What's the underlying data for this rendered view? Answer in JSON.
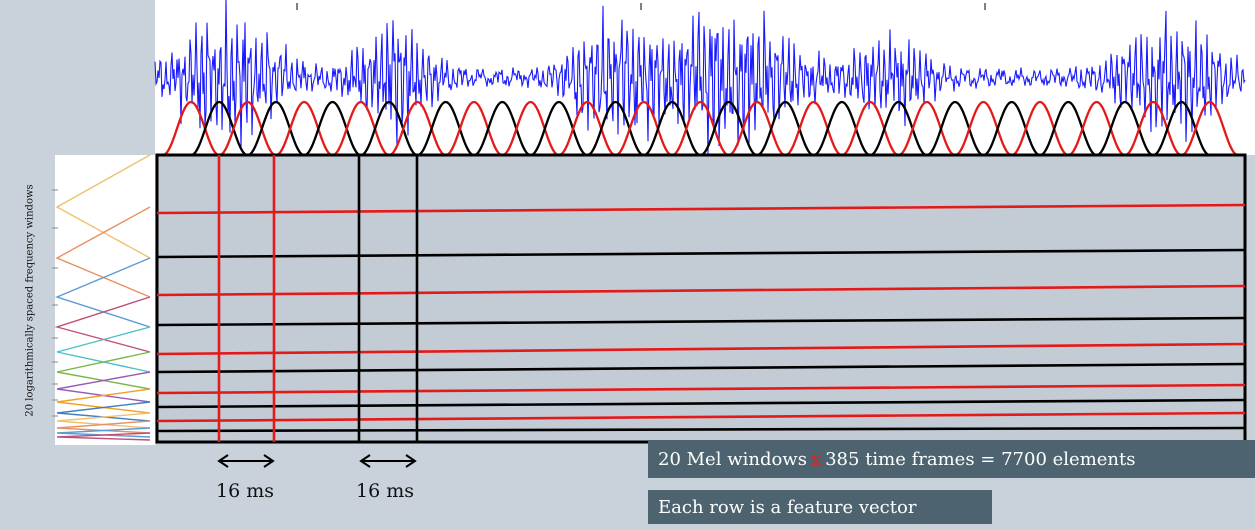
{
  "y_axis_label": "20 logarithmically spaced frequency  windows",
  "durations": [
    "16 ms",
    "16 ms"
  ],
  "summary": {
    "lhs": "20 Mel windows",
    "operator": "x",
    "rhs": "385 time frames = 7700 elements"
  },
  "note": "Each row is a feature vector",
  "colors": {
    "waveform": "#1a1aff",
    "window_red": "#e41a1a",
    "window_black": "#000000",
    "grid_bg": "#c3ccd4",
    "banner_bg": "#4d6470",
    "filter_colors": [
      "#f0c070",
      "#e89060",
      "#5b9bd5",
      "#c0507a",
      "#4cc0c8",
      "#7ab648",
      "#9b59b6",
      "#f4a020",
      "#3d7fbf"
    ]
  },
  "icons": [
    "double-arrow-icon"
  ]
}
